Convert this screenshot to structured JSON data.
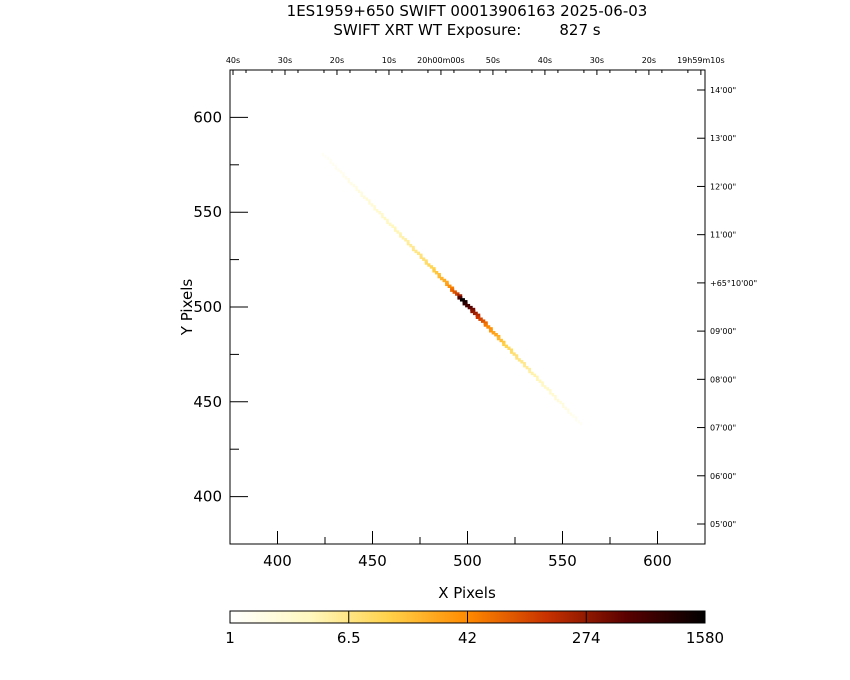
{
  "header": {
    "line1": "1ES1959+650 SWIFT 00013906163 2025-06-03",
    "line2": "SWIFT XRT WT Exposure:        827 s"
  },
  "chart_data": {
    "type": "heatmap",
    "xlabel": "X Pixels",
    "ylabel": "Y Pixels",
    "xlim": [
      375,
      625
    ],
    "ylim": [
      375,
      625
    ],
    "x_ticks": [
      "400",
      "450",
      "500",
      "550",
      "600"
    ],
    "y_ticks": [
      "400",
      "450",
      "500",
      "550",
      "600"
    ],
    "ra_ticks": [
      "40s",
      "30s",
      "20s",
      "10s",
      "20h00m00s",
      "50s",
      "40s",
      "30s",
      "20s",
      "19h59m10s"
    ],
    "dec_ticks": [
      "14'00\"",
      "13'00\"",
      "12'00\"",
      "11'00\"",
      "+65°10'00\"",
      "09'00\"",
      "08'00\"",
      "07'00\"",
      "06'00\"",
      "05'00\""
    ],
    "colorbar": {
      "scale": "log",
      "range": [
        1,
        1580
      ],
      "tick_labels": [
        "1",
        "6.5",
        "42",
        "274",
        "1580"
      ],
      "colors": [
        "#ffffff",
        "#fff8c0",
        "#ffd24a",
        "#ff8a00",
        "#c83200",
        "#5a0000",
        "#000000"
      ]
    },
    "streak": {
      "start": [
        424,
        581
      ],
      "end": [
        560,
        438
      ],
      "peak": [
        497,
        500
      ],
      "intensity_profile": [
        {
          "t": 0.0,
          "counts": 1.2
        },
        {
          "t": 0.1,
          "counts": 1.6
        },
        {
          "t": 0.2,
          "counts": 2.4
        },
        {
          "t": 0.3,
          "counts": 4.0
        },
        {
          "t": 0.4,
          "counts": 8.0
        },
        {
          "t": 0.48,
          "counts": 25
        },
        {
          "t": 0.52,
          "counts": 120
        },
        {
          "t": 0.54,
          "counts": 1580
        },
        {
          "t": 0.58,
          "counts": 300
        },
        {
          "t": 0.64,
          "counts": 40
        },
        {
          "t": 0.72,
          "counts": 9
        },
        {
          "t": 0.82,
          "counts": 4
        },
        {
          "t": 0.92,
          "counts": 2
        },
        {
          "t": 1.0,
          "counts": 1.2
        }
      ]
    }
  }
}
